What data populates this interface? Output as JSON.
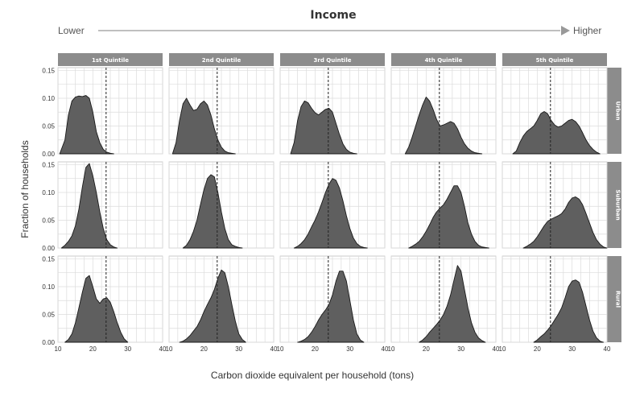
{
  "title": "Income",
  "income_low_label": "Lower",
  "income_high_label": "Higher",
  "colors": {
    "fill": "#5f5f5f",
    "stroke": "#1a1a1a",
    "header_bg": "#8c8c8c",
    "grid": "#dcdcdc",
    "panel_border": "#bfbfbf",
    "reference_line": "#222222",
    "arrow": "#999999"
  },
  "chart_data": {
    "type": "area",
    "chart_kind": "small-multiple density plots",
    "xlabel": "Carbon dioxide equivalent per household (tons)",
    "ylabel": "Fraction of households",
    "xlim": [
      10,
      40
    ],
    "ylim": [
      0,
      0.155
    ],
    "x_ticks": [
      10,
      20,
      30,
      40
    ],
    "y_ticks": [
      0.0,
      0.05,
      0.1,
      0.15
    ],
    "x_tick_labels": [
      "10",
      "20",
      "30",
      "40"
    ],
    "y_tick_labels": [
      "0.00",
      "0.05",
      "0.10",
      "0.15"
    ],
    "reference_line_x": 23.8,
    "grid": true,
    "columns": [
      "1st Quintile",
      "2nd Quintile",
      "3rd Quintile",
      "4th Quintile",
      "5th Quintile"
    ],
    "rows": [
      "Urban",
      "Suburban",
      "Rural"
    ],
    "panels": [
      [
        {
          "x": [
            10.5,
            12,
            13,
            14,
            15,
            16,
            17,
            18,
            19,
            20,
            21,
            22,
            23,
            24,
            25,
            26
          ],
          "y": [
            0.0,
            0.025,
            0.07,
            0.095,
            0.102,
            0.104,
            0.103,
            0.105,
            0.1,
            0.075,
            0.04,
            0.02,
            0.008,
            0.003,
            0.001,
            0.0
          ]
        },
        {
          "x": [
            11,
            12,
            13,
            14,
            15,
            16,
            17,
            18,
            19,
            20,
            21,
            22,
            23,
            24,
            25,
            26,
            27,
            28,
            29
          ],
          "y": [
            0.0,
            0.02,
            0.06,
            0.09,
            0.1,
            0.088,
            0.078,
            0.08,
            0.09,
            0.095,
            0.088,
            0.07,
            0.045,
            0.025,
            0.012,
            0.005,
            0.002,
            0.001,
            0.0
          ]
        },
        {
          "x": [
            13,
            14,
            15,
            16,
            17,
            18,
            19,
            20,
            21,
            22,
            23,
            24,
            25,
            26,
            27,
            28,
            29,
            30,
            31,
            32
          ],
          "y": [
            0.0,
            0.02,
            0.06,
            0.085,
            0.095,
            0.092,
            0.082,
            0.074,
            0.07,
            0.075,
            0.08,
            0.082,
            0.075,
            0.055,
            0.035,
            0.018,
            0.008,
            0.003,
            0.001,
            0.0
          ]
        },
        {
          "x": [
            14,
            15,
            16,
            17,
            18,
            19,
            20,
            21,
            22,
            23,
            24,
            25,
            26,
            27,
            28,
            29,
            30,
            31,
            32,
            33,
            34,
            35,
            36
          ],
          "y": [
            0.0,
            0.012,
            0.03,
            0.05,
            0.07,
            0.088,
            0.102,
            0.095,
            0.08,
            0.062,
            0.05,
            0.052,
            0.055,
            0.058,
            0.055,
            0.045,
            0.03,
            0.018,
            0.01,
            0.005,
            0.002,
            0.001,
            0.0
          ]
        },
        {
          "x": [
            13,
            14,
            15,
            16,
            17,
            18,
            19,
            20,
            21,
            22,
            23,
            24,
            25,
            26,
            27,
            28,
            29,
            30,
            31,
            32,
            33,
            34,
            35,
            36,
            37,
            38
          ],
          "y": [
            0.0,
            0.005,
            0.02,
            0.032,
            0.04,
            0.045,
            0.05,
            0.06,
            0.072,
            0.076,
            0.072,
            0.06,
            0.052,
            0.048,
            0.05,
            0.055,
            0.06,
            0.062,
            0.058,
            0.05,
            0.038,
            0.025,
            0.015,
            0.008,
            0.003,
            0.0
          ]
        }
      ],
      [
        {
          "x": [
            11,
            12,
            13,
            14,
            15,
            16,
            17,
            18,
            19,
            20,
            21,
            22,
            23,
            24,
            25,
            26,
            27
          ],
          "y": [
            0.0,
            0.005,
            0.012,
            0.022,
            0.04,
            0.07,
            0.11,
            0.145,
            0.152,
            0.13,
            0.1,
            0.065,
            0.035,
            0.015,
            0.006,
            0.002,
            0.0
          ]
        },
        {
          "x": [
            14,
            15,
            16,
            17,
            18,
            19,
            20,
            21,
            22,
            23,
            24,
            25,
            26,
            27,
            28,
            29,
            30,
            31
          ],
          "y": [
            0.0,
            0.005,
            0.015,
            0.03,
            0.05,
            0.078,
            0.105,
            0.125,
            0.132,
            0.128,
            0.1,
            0.065,
            0.035,
            0.015,
            0.006,
            0.003,
            0.001,
            0.0
          ]
        },
        {
          "x": [
            14,
            15,
            16,
            17,
            18,
            19,
            20,
            21,
            22,
            23,
            24,
            25,
            26,
            27,
            28,
            29,
            30,
            31,
            32,
            33,
            34,
            35
          ],
          "y": [
            0.0,
            0.003,
            0.008,
            0.015,
            0.025,
            0.038,
            0.05,
            0.065,
            0.082,
            0.1,
            0.115,
            0.125,
            0.122,
            0.108,
            0.085,
            0.058,
            0.035,
            0.018,
            0.008,
            0.003,
            0.001,
            0.0
          ]
        },
        {
          "x": [
            15,
            16,
            17,
            18,
            19,
            20,
            21,
            22,
            23,
            24,
            25,
            26,
            27,
            28,
            29,
            30,
            31,
            32,
            33,
            34,
            35,
            36,
            37,
            38
          ],
          "y": [
            0.0,
            0.003,
            0.007,
            0.012,
            0.02,
            0.03,
            0.042,
            0.055,
            0.065,
            0.072,
            0.078,
            0.088,
            0.1,
            0.112,
            0.112,
            0.1,
            0.075,
            0.045,
            0.025,
            0.012,
            0.005,
            0.002,
            0.001,
            0.0
          ]
        },
        {
          "x": [
            16,
            17,
            18,
            19,
            20,
            21,
            22,
            23,
            24,
            25,
            26,
            27,
            28,
            29,
            30,
            31,
            32,
            33,
            34,
            35,
            36,
            37,
            38,
            39,
            40
          ],
          "y": [
            0.0,
            0.003,
            0.007,
            0.012,
            0.02,
            0.03,
            0.04,
            0.048,
            0.052,
            0.055,
            0.058,
            0.062,
            0.07,
            0.082,
            0.09,
            0.092,
            0.088,
            0.078,
            0.062,
            0.045,
            0.028,
            0.015,
            0.007,
            0.002,
            0.0
          ]
        }
      ],
      [
        {
          "x": [
            12,
            13,
            14,
            15,
            16,
            17,
            18,
            19,
            20,
            21,
            22,
            23,
            24,
            25,
            26,
            27,
            28,
            29,
            30
          ],
          "y": [
            0.0,
            0.005,
            0.015,
            0.035,
            0.062,
            0.09,
            0.115,
            0.12,
            0.1,
            0.078,
            0.07,
            0.078,
            0.08,
            0.072,
            0.055,
            0.035,
            0.018,
            0.006,
            0.0
          ]
        },
        {
          "x": [
            13,
            14,
            15,
            16,
            17,
            18,
            19,
            20,
            21,
            22,
            23,
            24,
            25,
            26,
            27,
            28,
            29,
            30,
            31,
            32
          ],
          "y": [
            0.0,
            0.002,
            0.006,
            0.012,
            0.02,
            0.028,
            0.04,
            0.055,
            0.068,
            0.08,
            0.095,
            0.115,
            0.13,
            0.125,
            0.1,
            0.068,
            0.038,
            0.015,
            0.005,
            0.0
          ]
        },
        {
          "x": [
            15,
            16,
            17,
            18,
            19,
            20,
            21,
            22,
            23,
            24,
            25,
            26,
            27,
            28,
            29,
            30,
            31,
            32,
            33,
            34
          ],
          "y": [
            0.0,
            0.002,
            0.005,
            0.01,
            0.018,
            0.028,
            0.04,
            0.05,
            0.058,
            0.068,
            0.085,
            0.11,
            0.128,
            0.128,
            0.11,
            0.075,
            0.04,
            0.015,
            0.004,
            0.0
          ]
        },
        {
          "x": [
            18,
            19,
            20,
            21,
            22,
            23,
            24,
            25,
            26,
            27,
            28,
            29,
            30,
            31,
            32,
            33,
            34,
            35,
            36,
            37
          ],
          "y": [
            0.0,
            0.004,
            0.01,
            0.018,
            0.025,
            0.032,
            0.04,
            0.05,
            0.065,
            0.085,
            0.112,
            0.138,
            0.128,
            0.095,
            0.062,
            0.035,
            0.018,
            0.008,
            0.003,
            0.0
          ]
        },
        {
          "x": [
            19,
            20,
            21,
            22,
            23,
            24,
            25,
            26,
            27,
            28,
            29,
            30,
            31,
            32,
            33,
            34,
            35,
            36,
            37,
            38,
            39
          ],
          "y": [
            0.0,
            0.004,
            0.01,
            0.015,
            0.022,
            0.03,
            0.04,
            0.05,
            0.062,
            0.08,
            0.1,
            0.11,
            0.112,
            0.108,
            0.09,
            0.065,
            0.04,
            0.02,
            0.008,
            0.002,
            0.0
          ]
        }
      ]
    ]
  }
}
